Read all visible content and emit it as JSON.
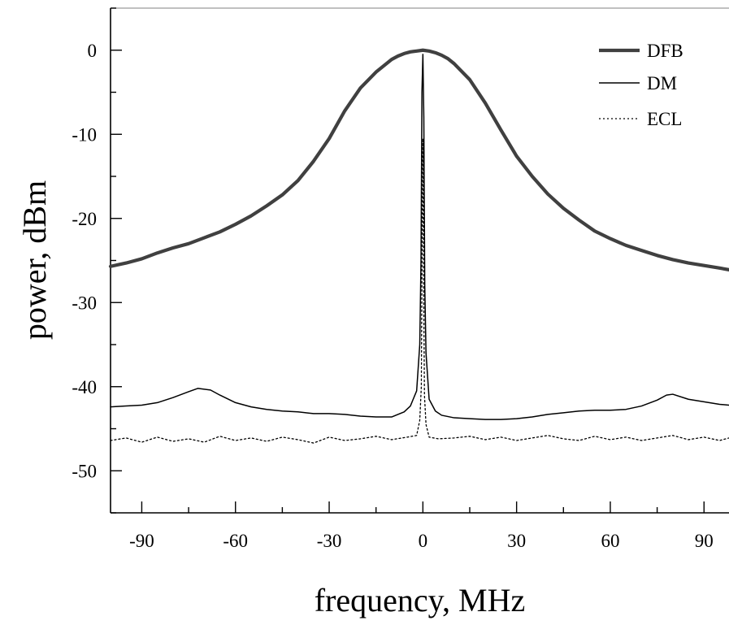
{
  "chart_data": {
    "type": "line",
    "title": "",
    "xlabel": "frequency, MHz",
    "ylabel": "power, dBm",
    "xlim": [
      -100,
      98
    ],
    "ylim": [
      -55,
      5
    ],
    "grid": false,
    "legend_position": "top-right",
    "x_ticks": [
      -90,
      -60,
      -30,
      0,
      30,
      60,
      90
    ],
    "y_ticks": [
      0,
      -10,
      -20,
      -30,
      -40,
      -50
    ],
    "x_tick_labels": [
      "-90",
      "-60",
      "-30",
      "0",
      "30",
      "60",
      "90"
    ],
    "y_tick_labels": [
      "0",
      "-10",
      "-20",
      "-30",
      "-40",
      "-50"
    ],
    "series": [
      {
        "name": "DFB",
        "style": "thick-solid",
        "color": "#404040",
        "x": [
          -100,
          -95,
          -90,
          -85,
          -80,
          -75,
          -70,
          -65,
          -60,
          -55,
          -50,
          -45,
          -40,
          -35,
          -30,
          -25,
          -20,
          -15,
          -10,
          -8,
          -6,
          -4,
          -2,
          0,
          2,
          4,
          6,
          8,
          10,
          15,
          20,
          25,
          30,
          35,
          40,
          45,
          50,
          55,
          60,
          65,
          70,
          75,
          80,
          85,
          90,
          95,
          98
        ],
        "y": [
          -25.7,
          -25.3,
          -24.8,
          -24.1,
          -23.5,
          -23.0,
          -22.3,
          -21.6,
          -20.7,
          -19.7,
          -18.5,
          -17.2,
          -15.5,
          -13.2,
          -10.5,
          -7.2,
          -4.5,
          -2.6,
          -1.1,
          -0.7,
          -0.4,
          -0.2,
          -0.1,
          0.0,
          -0.1,
          -0.3,
          -0.6,
          -1.0,
          -1.6,
          -3.5,
          -6.3,
          -9.5,
          -12.6,
          -15.0,
          -17.1,
          -18.8,
          -20.2,
          -21.5,
          -22.4,
          -23.2,
          -23.8,
          -24.4,
          -24.9,
          -25.3,
          -25.6,
          -25.9,
          -26.1
        ]
      },
      {
        "name": "DM",
        "style": "thin-solid",
        "color": "#000000",
        "x": [
          -100,
          -95,
          -90,
          -85,
          -80,
          -75,
          -72,
          -68,
          -65,
          -60,
          -55,
          -50,
          -45,
          -40,
          -35,
          -30,
          -25,
          -20,
          -15,
          -10,
          -6,
          -4,
          -2,
          -1,
          -0.6,
          -0.3,
          0,
          0.3,
          0.6,
          1,
          2,
          4,
          6,
          10,
          15,
          20,
          25,
          30,
          35,
          40,
          45,
          50,
          55,
          60,
          65,
          70,
          75,
          78,
          80,
          85,
          90,
          95,
          98
        ],
        "y": [
          -42.4,
          -42.3,
          -42.2,
          -41.9,
          -41.3,
          -40.6,
          -40.2,
          -40.4,
          -41.0,
          -41.9,
          -42.4,
          -42.7,
          -42.9,
          -43.0,
          -43.2,
          -43.2,
          -43.3,
          -43.5,
          -43.6,
          -43.6,
          -43.0,
          -42.3,
          -40.5,
          -35,
          -25,
          -5,
          -0.5,
          -8,
          -28,
          -36,
          -41.5,
          -42.9,
          -43.4,
          -43.7,
          -43.8,
          -43.9,
          -43.9,
          -43.8,
          -43.6,
          -43.3,
          -43.1,
          -42.9,
          -42.8,
          -42.8,
          -42.7,
          -42.3,
          -41.6,
          -41.0,
          -40.9,
          -41.5,
          -41.8,
          -42.1,
          -42.2
        ]
      },
      {
        "name": "ECL",
        "style": "dotted",
        "color": "#000000",
        "x": [
          -100,
          -95,
          -90,
          -85,
          -80,
          -75,
          -70,
          -65,
          -60,
          -55,
          -50,
          -45,
          -40,
          -35,
          -30,
          -25,
          -20,
          -15,
          -10,
          -5,
          -2,
          -1,
          -0.5,
          -0.2,
          0,
          0.2,
          0.5,
          1,
          2,
          5,
          10,
          15,
          20,
          25,
          30,
          35,
          40,
          45,
          50,
          55,
          60,
          65,
          70,
          75,
          80,
          85,
          90,
          95,
          98
        ],
        "y": [
          -46.4,
          -46.1,
          -46.6,
          -46.0,
          -46.5,
          -46.2,
          -46.6,
          -45.9,
          -46.4,
          -46.1,
          -46.5,
          -46.0,
          -46.3,
          -46.7,
          -46.0,
          -46.4,
          -46.2,
          -45.9,
          -46.3,
          -46.0,
          -45.8,
          -44.0,
          -40,
          -20,
          -10.5,
          -25,
          -41,
          -44.5,
          -46.0,
          -46.2,
          -46.1,
          -45.9,
          -46.3,
          -46.0,
          -46.4,
          -46.1,
          -45.8,
          -46.2,
          -46.4,
          -45.9,
          -46.3,
          -46.0,
          -46.4,
          -46.1,
          -45.8,
          -46.3,
          -46.0,
          -46.4,
          -46.1
        ]
      }
    ]
  }
}
